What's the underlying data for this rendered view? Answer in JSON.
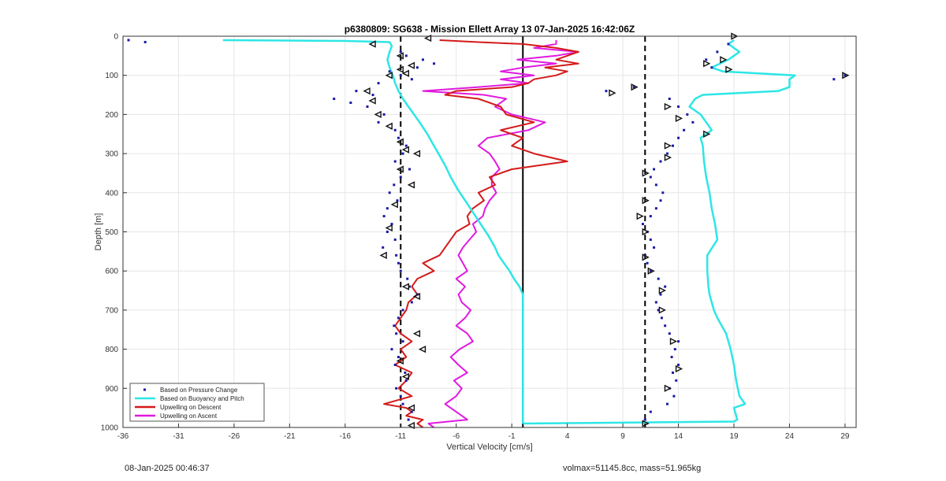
{
  "footer": {
    "timestamp": "08-Jan-2025 00:46:37",
    "mass_info": "volmax=51145.8cc, mass=51.965kg"
  },
  "chart_data": {
    "type": "line",
    "title": "p6380809: SG638 - Mission Ellett Array 13 07-Jan-2025 16:42:06Z",
    "xlabel": "Vertical Velocity [cm/s]",
    "ylabel": "Depth [m]",
    "xlim": [
      -36,
      30
    ],
    "ylim": [
      0,
      1000
    ],
    "y_reversed": true,
    "grid": true,
    "legend_position": "bottom-left",
    "xticks": [
      -36,
      -31,
      -26,
      -21,
      -16,
      -11,
      -6,
      -1,
      4,
      9,
      14,
      19,
      24,
      29
    ],
    "yticks": [
      0,
      100,
      200,
      300,
      400,
      500,
      600,
      700,
      800,
      900,
      1000
    ],
    "reference_lines": [
      {
        "x": -11,
        "style": "dashed",
        "color": "#000000"
      },
      {
        "x": 11,
        "style": "dashed",
        "color": "#000000"
      },
      {
        "x": 0,
        "style": "solid",
        "color": "#000000"
      }
    ],
    "colors": {
      "pressure": "#1a1aa6",
      "buoyancy": "#2ee6e6",
      "descent": "#d41a1a",
      "ascent": "#e01adf",
      "marker": "#111111"
    },
    "legend": [
      {
        "label": "Based on Pressure Change",
        "series": "pressure"
      },
      {
        "label": "Based on Buoyancy and Pitch",
        "series": "buoyancy"
      },
      {
        "label": "Upwelling on Descent",
        "series": "descent"
      },
      {
        "label": "Upwelling on Ascent",
        "series": "ascent"
      }
    ],
    "series": {
      "buoyancy_descent": {
        "depth": [
          10,
          12,
          15,
          25,
          40,
          60,
          80,
          100,
          120,
          140,
          160,
          180,
          200,
          220,
          250,
          280,
          300,
          330,
          360,
          390,
          420,
          450,
          480,
          510,
          540,
          560,
          580,
          600,
          620,
          640,
          660,
          680,
          700,
          800,
          900,
          980,
          990
        ],
        "velocity": [
          -27,
          -16,
          -12,
          -11.8,
          -12,
          -12.2,
          -12,
          -11.7,
          -11.5,
          -11.2,
          -10.8,
          -10.3,
          -9.8,
          -9.3,
          -8.6,
          -8.0,
          -7.6,
          -7.0,
          -6.5,
          -5.9,
          -5.2,
          -4.5,
          -3.8,
          -3.1,
          -2.5,
          -2.2,
          -1.7,
          -1.2,
          -0.8,
          -0.3,
          0,
          0,
          0,
          0,
          0,
          0,
          0
        ]
      },
      "buoyancy_ascent": {
        "depth": [
          990,
          985,
          980,
          950,
          940,
          920,
          880,
          840,
          800,
          760,
          720,
          700,
          680,
          660,
          640,
          600,
          560,
          520,
          480,
          440,
          400,
          360,
          320,
          280,
          260,
          240,
          220,
          200,
          180,
          160,
          150,
          140,
          130,
          120,
          110,
          100,
          90,
          80,
          60,
          40,
          20,
          10
        ],
        "velocity": [
          0,
          19,
          19.3,
          19,
          20,
          19.5,
          19.2,
          19,
          18.7,
          18.3,
          17.5,
          17.2,
          17.0,
          16.8,
          16.7,
          16.6,
          16.6,
          17.5,
          17.3,
          17.0,
          16.8,
          16.5,
          16.3,
          16.2,
          16.0,
          17.0,
          16.5,
          16.0,
          15.0,
          15.5,
          16.2,
          23.0,
          24.0,
          24.0,
          24.0,
          24.5,
          18.0,
          17.0,
          18.5,
          19.5,
          18.5,
          19
        ]
      },
      "descent": {
        "depth": [
          10,
          15,
          20,
          30,
          40,
          50,
          60,
          70,
          80,
          90,
          100,
          110,
          120,
          130,
          140,
          150,
          160,
          180,
          200,
          220,
          240,
          260,
          280,
          300,
          320,
          340,
          360,
          380,
          400,
          420,
          440,
          460,
          480,
          500,
          520,
          540,
          560,
          580,
          600,
          620,
          640,
          660,
          680,
          700,
          720,
          740,
          760,
          780,
          800,
          820,
          840,
          860,
          880,
          900,
          920,
          940,
          950,
          960,
          970,
          980,
          990,
          1000
        ],
        "velocity": [
          -7.5,
          -4,
          0,
          3,
          5,
          4,
          3,
          5,
          2,
          4,
          3,
          1,
          0.5,
          -1,
          -6,
          -7,
          -4,
          -2,
          -1.5,
          1,
          -2,
          0,
          -1,
          1,
          4,
          -1,
          -3,
          -2.5,
          -4,
          -3.5,
          -4.5,
          -5,
          -4.8,
          -6,
          -6.5,
          -7,
          -7.5,
          -9,
          -8,
          -9.5,
          -10,
          -9.5,
          -10.3,
          -10.5,
          -11,
          -11.5,
          -11,
          -10,
          -11,
          -10.5,
          -11.5,
          -10,
          -10.5,
          -11.2,
          -10,
          -12.5,
          -10.5,
          -10,
          -10.5,
          -9,
          -9.5,
          -9
        ]
      },
      "ascent": {
        "depth": [
          1000,
          990,
          980,
          960,
          940,
          920,
          900,
          880,
          860,
          840,
          820,
          800,
          780,
          760,
          740,
          720,
          700,
          680,
          660,
          640,
          620,
          600,
          580,
          560,
          540,
          520,
          500,
          480,
          460,
          440,
          420,
          400,
          380,
          360,
          340,
          320,
          300,
          280,
          260,
          240,
          220,
          200,
          180,
          160,
          150,
          140,
          130,
          120,
          110,
          100,
          90,
          80,
          70,
          60,
          50,
          40,
          30,
          20,
          10
        ],
        "velocity": [
          -8,
          -8.5,
          -5,
          -6,
          -7,
          -6,
          -5.5,
          -6.2,
          -5,
          -5.8,
          -6.5,
          -5.7,
          -4.5,
          -5,
          -6,
          -5.2,
          -4.7,
          -5.5,
          -5.8,
          -5.2,
          -6,
          -5,
          -5.4,
          -5.8,
          -5.4,
          -4.8,
          -4.2,
          -4.5,
          -3.6,
          -3.4,
          -3.0,
          -2.4,
          -2.8,
          -2.8,
          -2.1,
          -2.5,
          -3,
          -4,
          -3.2,
          0.5,
          2,
          -1,
          -2.5,
          -1.5,
          -3.5,
          -9,
          -4,
          0.5,
          -2,
          1,
          -2,
          0,
          3,
          -0.5,
          3,
          5,
          1,
          3,
          3
        ]
      },
      "pressure_descent": {
        "depth": [
          10,
          15,
          40,
          50,
          60,
          70,
          80,
          90,
          100,
          110,
          120,
          140,
          150,
          160,
          170,
          180,
          200,
          220,
          240,
          260,
          280,
          300,
          320,
          340,
          360,
          380,
          400,
          420,
          440,
          460,
          480,
          500,
          520,
          540,
          560,
          580,
          600,
          620,
          640,
          660,
          680,
          700,
          720,
          740,
          760,
          780,
          800,
          820,
          840,
          860,
          880,
          900,
          920,
          940,
          960,
          980
        ],
        "velocity": [
          -35.5,
          -34,
          -11,
          -10.5,
          -9,
          -8,
          -9.5,
          -12,
          -11,
          -10,
          -13,
          -15,
          -13.5,
          -17,
          -15.5,
          -14,
          -12.5,
          -13,
          -11.5,
          -11.2,
          -10.5,
          -10.8,
          -11.5,
          -10.2,
          -11,
          -11.6,
          -12,
          -11.3,
          -12.2,
          -12.5,
          -11.8,
          -12.2,
          -11.5,
          -12.6,
          -11.4,
          -11.2,
          -11,
          -10.4,
          -10.2,
          -9.5,
          -10,
          -10.8,
          -11.2,
          -11.6,
          -11.4,
          -10.8,
          -11.8,
          -11.2,
          -11.5,
          -10.6,
          -10.5,
          -11.4,
          -11,
          -10.8,
          -10,
          -10.3
        ]
      },
      "pressure_ascent": {
        "depth": [
          980,
          960,
          940,
          920,
          900,
          880,
          860,
          840,
          820,
          800,
          780,
          760,
          740,
          720,
          700,
          680,
          660,
          640,
          620,
          600,
          580,
          560,
          540,
          520,
          500,
          480,
          460,
          440,
          420,
          400,
          380,
          360,
          340,
          320,
          300,
          280,
          260,
          240,
          220,
          200,
          180,
          160,
          140,
          130,
          110,
          100,
          80,
          60,
          40,
          20
        ],
        "velocity": [
          11,
          11.5,
          13,
          13.6,
          13.2,
          13.8,
          13.5,
          14,
          13.4,
          13.7,
          14,
          13.2,
          12.8,
          12.5,
          12.2,
          12,
          12.4,
          12.8,
          12.2,
          11.5,
          11.2,
          11,
          11.8,
          11.5,
          11.2,
          10.8,
          11.5,
          12,
          12.4,
          12.6,
          12,
          11.5,
          11.8,
          12.4,
          13,
          13.5,
          14,
          14.5,
          15.3,
          14.8,
          14,
          13.2,
          7.5,
          10,
          28,
          29,
          17,
          16.5,
          17.5,
          18.5
        ]
      }
    },
    "markers": {
      "descent": [
        [
          -13.5,
          20
        ],
        [
          -8.5,
          5
        ],
        [
          -11,
          50
        ],
        [
          -10,
          75
        ],
        [
          -11,
          85
        ],
        [
          -12,
          100
        ],
        [
          -10.5,
          95
        ],
        [
          -14,
          140
        ],
        [
          -13.5,
          165
        ],
        [
          -13,
          200
        ],
        [
          -12,
          230
        ],
        [
          -11,
          270
        ],
        [
          -10.5,
          290
        ],
        [
          -9.5,
          300
        ],
        [
          -11,
          340
        ],
        [
          -10,
          380
        ],
        [
          -11.5,
          430
        ],
        [
          -12,
          490
        ],
        [
          -12.5,
          560
        ],
        [
          -10.5,
          640
        ],
        [
          -9.5,
          665
        ],
        [
          -9.5,
          760
        ],
        [
          -9,
          800
        ],
        [
          -11,
          830
        ],
        [
          -10.5,
          870
        ],
        [
          -10,
          950
        ],
        [
          -10,
          995
        ]
      ],
      "ascent": [
        [
          11,
          990
        ],
        [
          13,
          900
        ],
        [
          14,
          850
        ],
        [
          13.5,
          780
        ],
        [
          12.5,
          700
        ],
        [
          12.5,
          650
        ],
        [
          11.5,
          600
        ],
        [
          11,
          565
        ],
        [
          11,
          500
        ],
        [
          10.5,
          460
        ],
        [
          11,
          420
        ],
        [
          11,
          350
        ],
        [
          13,
          310
        ],
        [
          13,
          280
        ],
        [
          14,
          210
        ],
        [
          13,
          180
        ],
        [
          16.5,
          250
        ],
        [
          10,
          130
        ],
        [
          8,
          145
        ],
        [
          29,
          100
        ],
        [
          18.5,
          85
        ],
        [
          16.5,
          70
        ],
        [
          18,
          60
        ],
        [
          19,
          0
        ]
      ]
    }
  }
}
